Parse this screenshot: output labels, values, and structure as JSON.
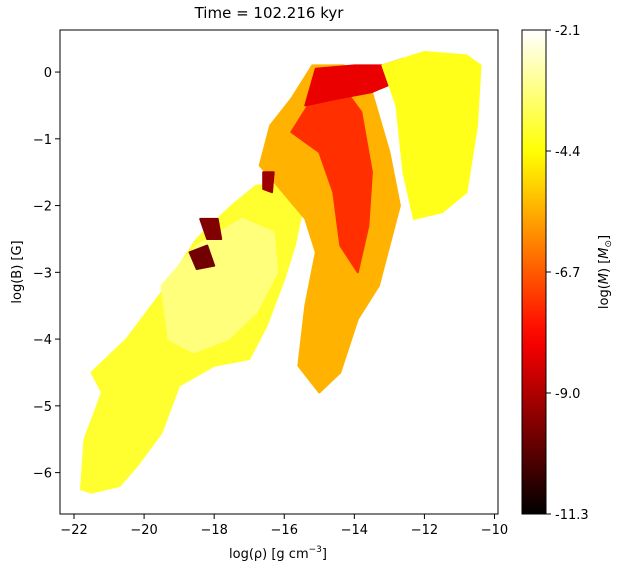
{
  "chart_data": {
    "type": "scatter",
    "title": "Time = 102.216 kyr",
    "xlabel": "log(ρ) [g cm⁻³]",
    "ylabel": "log(B) [G]",
    "xlim": [
      -22.4,
      -9.9
    ],
    "ylim": [
      -6.62,
      0.63
    ],
    "xticks": [
      -22,
      -20,
      -18,
      -16,
      -14,
      -12,
      -10
    ],
    "xtick_labels": [
      "−22",
      "−20",
      "−18",
      "−16",
      "−14",
      "−12",
      "−10"
    ],
    "yticks": [
      0,
      -1,
      -2,
      -3,
      -4,
      -5,
      -6
    ],
    "ytick_labels": [
      "0",
      "−1",
      "−2",
      "−3",
      "−4",
      "−5",
      "−6"
    ],
    "grid": false,
    "colormap": "hot",
    "colorbar": {
      "label": "log(M) [M☉]",
      "range": [
        -11.3,
        -2.1
      ],
      "ticks": [
        -2.1,
        -4.4,
        -6.7,
        -9.0,
        -11.3
      ],
      "tick_labels": [
        "-2.1",
        "-4.4",
        "-6.7",
        "-9.0",
        "-11.3"
      ]
    },
    "regions": [
      {
        "name": "dense-yellow-outer",
        "color_value": -4.0,
        "polygon": [
          [
            -21.8,
            -6.25
          ],
          [
            -21.7,
            -5.5
          ],
          [
            -21.2,
            -4.8
          ],
          [
            -21.5,
            -4.5
          ],
          [
            -20.5,
            -4.0
          ],
          [
            -19.5,
            -3.3
          ],
          [
            -18.5,
            -2.5
          ],
          [
            -17.5,
            -2.0
          ],
          [
            -16.8,
            -1.7
          ],
          [
            -16.0,
            -1.7
          ],
          [
            -15.5,
            -2.1
          ],
          [
            -15.7,
            -2.6
          ],
          [
            -16.0,
            -3.1
          ],
          [
            -16.5,
            -3.8
          ],
          [
            -17.0,
            -4.3
          ],
          [
            -18.0,
            -4.4
          ],
          [
            -19.0,
            -4.7
          ],
          [
            -19.5,
            -5.4
          ],
          [
            -20.2,
            -5.9
          ],
          [
            -20.7,
            -6.2
          ],
          [
            -21.5,
            -6.3
          ]
        ]
      },
      {
        "name": "pale-yellow-core",
        "color_value": -3.3,
        "polygon": [
          [
            -19.5,
            -3.2
          ],
          [
            -18.5,
            -2.6
          ],
          [
            -17.2,
            -2.2
          ],
          [
            -16.3,
            -2.4
          ],
          [
            -16.2,
            -3.0
          ],
          [
            -16.8,
            -3.6
          ],
          [
            -17.6,
            -4.0
          ],
          [
            -18.6,
            -4.2
          ],
          [
            -19.3,
            -4.0
          ]
        ]
      },
      {
        "name": "orange-upper-band",
        "color_value": -5.5,
        "polygon": [
          [
            -16.7,
            -1.4
          ],
          [
            -16.4,
            -0.8
          ],
          [
            -15.8,
            -0.4
          ],
          [
            -15.2,
            0.1
          ],
          [
            -14.3,
            0.1
          ],
          [
            -13.5,
            -0.3
          ],
          [
            -13.0,
            -1.2
          ],
          [
            -12.7,
            -2.0
          ],
          [
            -13.0,
            -2.6
          ],
          [
            -13.3,
            -3.2
          ],
          [
            -13.9,
            -3.7
          ],
          [
            -14.4,
            -4.5
          ],
          [
            -15.0,
            -4.8
          ],
          [
            -15.6,
            -4.4
          ],
          [
            -15.4,
            -3.5
          ],
          [
            -15.1,
            -2.7
          ],
          [
            -15.4,
            -2.2
          ],
          [
            -16.2,
            -1.7
          ]
        ]
      },
      {
        "name": "red-filament-band",
        "color_value": -7.3,
        "polygon": [
          [
            -15.2,
            -0.4
          ],
          [
            -14.5,
            -0.1
          ],
          [
            -13.8,
            -0.6
          ],
          [
            -13.5,
            -1.5
          ],
          [
            -13.6,
            -2.3
          ],
          [
            -13.9,
            -3.0
          ],
          [
            -14.4,
            -2.6
          ],
          [
            -14.6,
            -1.8
          ],
          [
            -15.0,
            -1.2
          ],
          [
            -15.8,
            -0.9
          ]
        ]
      },
      {
        "name": "dark-red-top-ridge",
        "color_value": -8.2,
        "polygon": [
          [
            -15.4,
            -0.5
          ],
          [
            -15.1,
            0.05
          ],
          [
            -14.0,
            0.1
          ],
          [
            -13.2,
            0.1
          ],
          [
            -12.6,
            0.2
          ],
          [
            -12.6,
            -0.1
          ],
          [
            -13.5,
            -0.3
          ],
          [
            -14.5,
            -0.4
          ]
        ]
      },
      {
        "name": "right-yellow-plume",
        "color_value": -4.2,
        "polygon": [
          [
            -13.2,
            0.1
          ],
          [
            -12.0,
            0.3
          ],
          [
            -10.8,
            0.25
          ],
          [
            -10.4,
            0.1
          ],
          [
            -10.5,
            -0.8
          ],
          [
            -10.8,
            -1.8
          ],
          [
            -11.5,
            -2.1
          ],
          [
            -12.3,
            -2.2
          ],
          [
            -12.6,
            -1.5
          ],
          [
            -12.8,
            -0.5
          ]
        ]
      },
      {
        "name": "dark-clump-1",
        "color_value": -9.6,
        "polygon": [
          [
            -18.4,
            -2.2
          ],
          [
            -17.9,
            -2.2
          ],
          [
            -17.8,
            -2.5
          ],
          [
            -18.2,
            -2.5
          ]
        ]
      },
      {
        "name": "dark-clump-2",
        "color_value": -9.8,
        "polygon": [
          [
            -18.7,
            -2.7
          ],
          [
            -18.2,
            -2.6
          ],
          [
            -18.0,
            -2.9
          ],
          [
            -18.5,
            -2.95
          ]
        ]
      },
      {
        "name": "dark-clump-3",
        "color_value": -9.2,
        "polygon": [
          [
            -16.6,
            -1.5
          ],
          [
            -16.3,
            -1.5
          ],
          [
            -16.35,
            -1.8
          ],
          [
            -16.6,
            -1.75
          ]
        ]
      }
    ]
  }
}
